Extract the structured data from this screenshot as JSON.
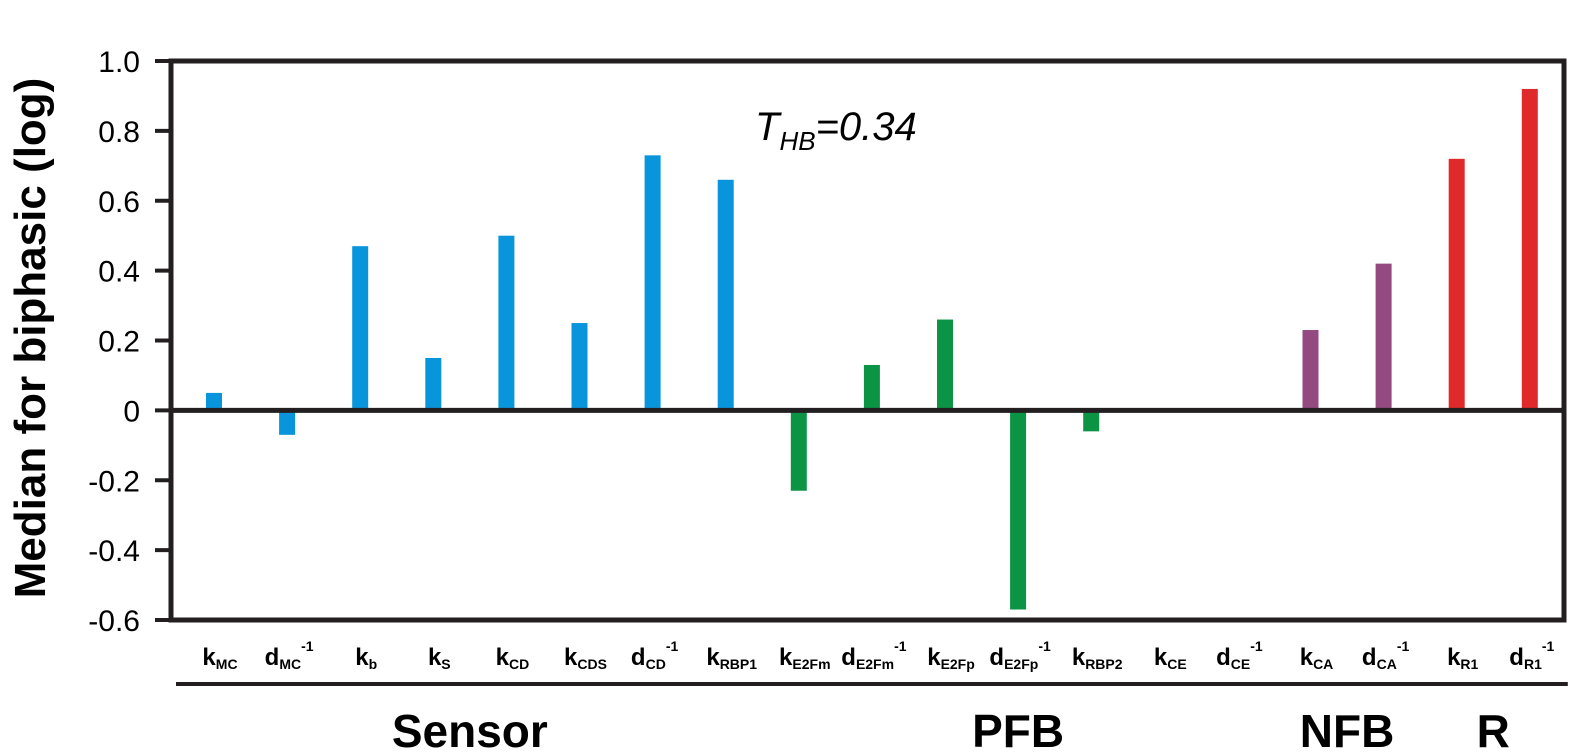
{
  "chart_data": {
    "type": "bar",
    "ylabel": "Median for biphasic (log)",
    "ylim": [
      -0.6,
      1.0
    ],
    "yticks": [
      "1.0",
      "0.8",
      "0.6",
      "0.4",
      "0.2",
      "0",
      "-0.2",
      "-0.4",
      "-0.6"
    ],
    "grid": false,
    "annotation": {
      "main": "T",
      "sub": "HB",
      "rest": "=0.34"
    },
    "categories": [
      {
        "main": "k",
        "sub": "MC",
        "sup": "",
        "value": 0.05,
        "group": "Sensor"
      },
      {
        "main": "d",
        "sub": "MC",
        "sup": "-1",
        "value": -0.07,
        "group": "Sensor"
      },
      {
        "main": "k",
        "sub": "b",
        "sup": "",
        "value": 0.47,
        "group": "Sensor"
      },
      {
        "main": "k",
        "sub": "S",
        "sup": "",
        "value": 0.15,
        "group": "Sensor"
      },
      {
        "main": "k",
        "sub": "CD",
        "sup": "",
        "value": 0.5,
        "group": "Sensor"
      },
      {
        "main": "k",
        "sub": "CDS",
        "sup": "",
        "value": 0.25,
        "group": "Sensor"
      },
      {
        "main": "d",
        "sub": "CD",
        "sup": "-1",
        "value": 0.73,
        "group": "Sensor"
      },
      {
        "main": "k",
        "sub": "RBP1",
        "sup": "",
        "value": 0.66,
        "group": "Sensor"
      },
      {
        "main": "k",
        "sub": "E2Fm",
        "sup": "",
        "value": -0.23,
        "group": "PFB"
      },
      {
        "main": "d",
        "sub": "E2Fm",
        "sup": "-1",
        "value": 0.13,
        "group": "PFB"
      },
      {
        "main": "k",
        "sub": "E2Fp",
        "sup": "",
        "value": 0.26,
        "group": "PFB"
      },
      {
        "main": "d",
        "sub": "E2Fp",
        "sup": "-1",
        "value": -0.57,
        "group": "PFB"
      },
      {
        "main": "k",
        "sub": "RBP2",
        "sup": "",
        "value": -0.06,
        "group": "PFB"
      },
      {
        "main": "k",
        "sub": "CE",
        "sup": "",
        "value": 0.0,
        "group": "PFB"
      },
      {
        "main": "d",
        "sub": "CE",
        "sup": "-1",
        "value": 0.0,
        "group": "PFB"
      },
      {
        "main": "k",
        "sub": "CA",
        "sup": "",
        "value": 0.23,
        "group": "NFB"
      },
      {
        "main": "d",
        "sub": "CA",
        "sup": "-1",
        "value": 0.42,
        "group": "NFB"
      },
      {
        "main": "k",
        "sub": "R1",
        "sup": "",
        "value": 0.72,
        "group": "R"
      },
      {
        "main": "d",
        "sub": "R1",
        "sup": "-1",
        "value": 0.92,
        "group": "R"
      }
    ],
    "groups": [
      {
        "name": "Sensor",
        "color": "#0995dc"
      },
      {
        "name": "PFB",
        "color": "#0a9444"
      },
      {
        "name": "NFB",
        "color": "#944a80"
      },
      {
        "name": "R",
        "color": "#e0292a"
      }
    ]
  }
}
